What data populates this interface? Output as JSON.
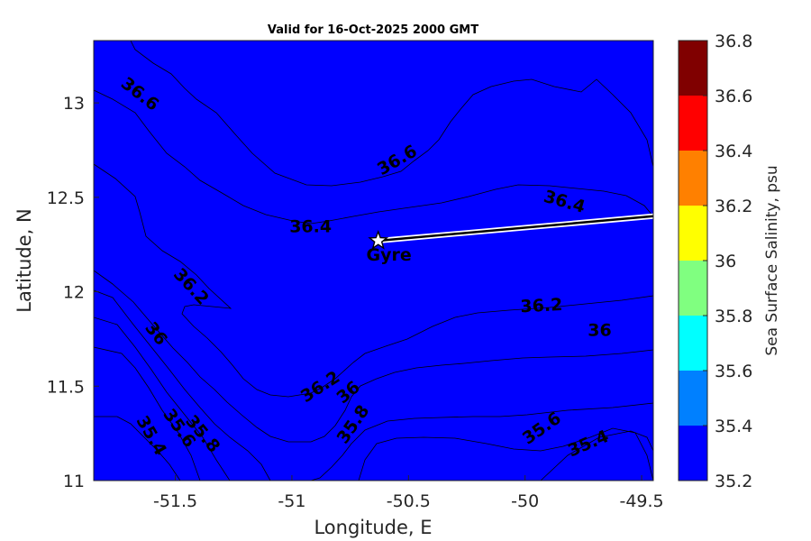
{
  "chart_data": {
    "type": "contour",
    "title": "Valid for 16-Oct-2025 2000 GMT",
    "xlabel": "Longitude, E",
    "ylabel": "Latitude, N",
    "xlim": [
      -51.85,
      -49.45
    ],
    "ylim": [
      11,
      13.33
    ],
    "xticks": [
      -51.5,
      -51,
      -50.5,
      -50,
      -49.5
    ],
    "xtick_labels": [
      "-51.5",
      "-51",
      "-50.5",
      "-50",
      "-49.5"
    ],
    "yticks": [
      11,
      11.5,
      12,
      12.5,
      13
    ],
    "ytick_labels": [
      "11",
      "11.5",
      "12",
      "12.5",
      "13"
    ],
    "colorbar": {
      "label": "Sea Surface Salinity, psu",
      "levels": [
        35.2,
        35.4,
        35.6,
        35.8,
        36,
        36.2,
        36.4,
        36.6,
        36.8
      ],
      "tick_labels": [
        "35.2",
        "35.4",
        "35.6",
        "35.8",
        "36",
        "36.2",
        "36.4",
        "36.6",
        "36.8"
      ],
      "colors": [
        "#0000ff",
        "#0080ff",
        "#00ffff",
        "#80ff80",
        "#ffff00",
        "#ff8000",
        "#ff0000",
        "#800000"
      ]
    },
    "contour_labels": [
      {
        "text": "36.6",
        "x": -51.65,
        "y": 13.05,
        "angle": 38
      },
      {
        "text": "36.6",
        "x": -50.55,
        "y": 12.7,
        "angle": -30
      },
      {
        "text": "36.4",
        "x": -50.92,
        "y": 12.35,
        "angle": 0
      },
      {
        "text": "36.4",
        "x": -49.83,
        "y": 12.48,
        "angle": 16
      },
      {
        "text": "36.2",
        "x": -51.43,
        "y": 12.03,
        "angle": 47
      },
      {
        "text": "36.2",
        "x": -49.93,
        "y": 11.93,
        "angle": -3
      },
      {
        "text": "36.2",
        "x": -50.88,
        "y": 11.5,
        "angle": -33
      },
      {
        "text": "36",
        "x": -51.58,
        "y": 11.78,
        "angle": 52
      },
      {
        "text": "36",
        "x": -49.68,
        "y": 11.8,
        "angle": 0
      },
      {
        "text": "36",
        "x": -50.76,
        "y": 11.47,
        "angle": -40
      },
      {
        "text": "35.8",
        "x": -51.38,
        "y": 11.25,
        "angle": 50
      },
      {
        "text": "35.8",
        "x": -50.74,
        "y": 11.3,
        "angle": -55
      },
      {
        "text": "35.6",
        "x": -51.48,
        "y": 11.28,
        "angle": 55
      },
      {
        "text": "35.6",
        "x": -49.93,
        "y": 11.28,
        "angle": -35
      },
      {
        "text": "35.4",
        "x": -51.6,
        "y": 11.24,
        "angle": 60
      },
      {
        "text": "35.4",
        "x": -49.73,
        "y": 11.2,
        "angle": -23
      }
    ],
    "annotations": [
      {
        "type": "star",
        "label": "Gyre",
        "x": -50.63,
        "y": 12.27
      }
    ],
    "track": {
      "x": [
        -50.63,
        -49.45
      ],
      "y": [
        12.27,
        12.4
      ]
    }
  }
}
